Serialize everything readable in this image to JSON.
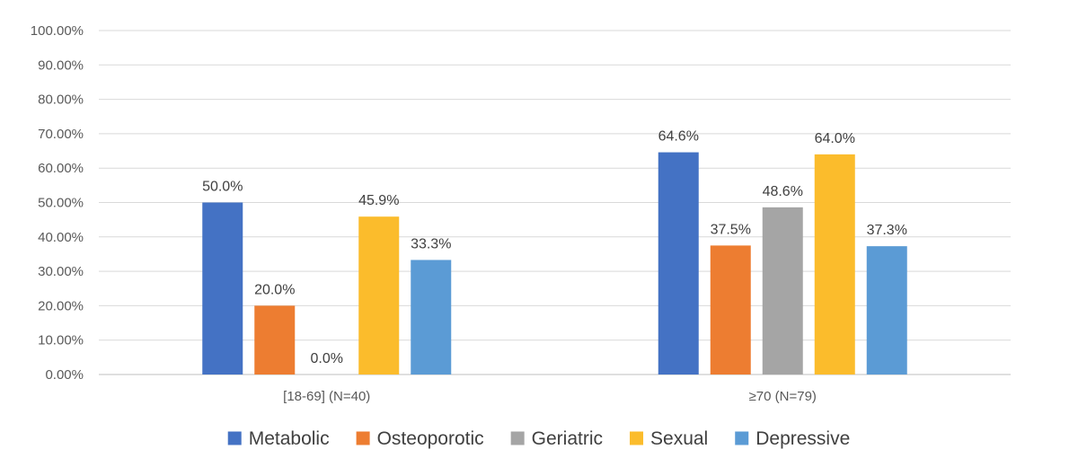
{
  "chart_data": {
    "type": "bar",
    "title": "",
    "xlabel": "",
    "ylabel": "",
    "ylim": [
      0,
      100
    ],
    "yticks": [
      "0.00%",
      "10.00%",
      "20.00%",
      "30.00%",
      "40.00%",
      "50.00%",
      "60.00%",
      "70.00%",
      "80.00%",
      "90.00%",
      "100.00%"
    ],
    "categories": [
      "[18-69] (N=40)",
      "≥70 (N=79)"
    ],
    "series": [
      {
        "name": "Metabolic",
        "color": "#4472c4",
        "values": [
          50.0,
          64.6
        ],
        "labels": [
          "50.0%",
          "64.6%"
        ]
      },
      {
        "name": "Osteoporotic",
        "color": "#ed7d31",
        "values": [
          20.0,
          37.5
        ],
        "labels": [
          "20.0%",
          "37.5%"
        ]
      },
      {
        "name": "Geriatric",
        "color": "#a5a5a5",
        "values": [
          0.0,
          48.6
        ],
        "labels": [
          "0.0%",
          "48.6%"
        ]
      },
      {
        "name": "Sexual",
        "color": "#fbbc2c",
        "values": [
          45.9,
          64.0
        ],
        "labels": [
          "45.9%",
          "64.0%"
        ]
      },
      {
        "name": "Depressive",
        "color": "#5b9bd5",
        "values": [
          33.3,
          37.3
        ],
        "labels": [
          "33.3%",
          "37.3%"
        ]
      }
    ],
    "grid": true,
    "legend_position": "bottom"
  }
}
